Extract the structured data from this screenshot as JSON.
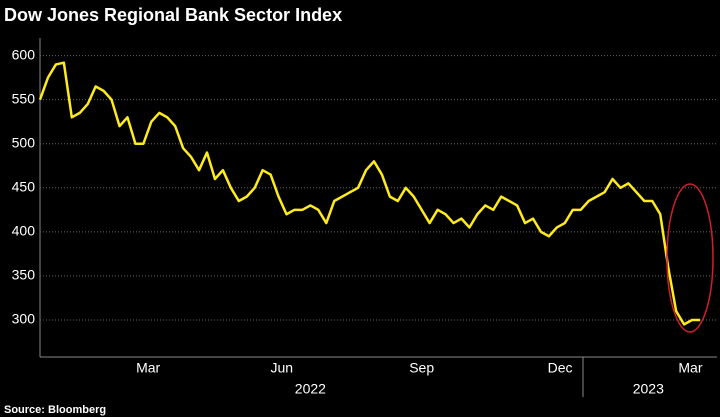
{
  "chart_data": {
    "type": "line",
    "title": "Dow Jones Regional Bank Sector Index",
    "source": "Source: Bloomberg",
    "series": [
      {
        "name": "Dow Jones Regional Bank Sector Index",
        "color": "#ffeb1a",
        "values": [
          550,
          575,
          590,
          592,
          530,
          535,
          545,
          565,
          560,
          550,
          520,
          530,
          500,
          500,
          525,
          535,
          530,
          520,
          495,
          485,
          470,
          490,
          460,
          470,
          450,
          435,
          440,
          450,
          470,
          465,
          440,
          420,
          425,
          425,
          430,
          425,
          410,
          435,
          440,
          445,
          450,
          470,
          480,
          465,
          440,
          435,
          450,
          440,
          425,
          410,
          425,
          420,
          410,
          415,
          405,
          420,
          430,
          425,
          440,
          435,
          430,
          410,
          415,
          400,
          395,
          405,
          410,
          425,
          425,
          435,
          440,
          445,
          460,
          450,
          455,
          445,
          435,
          435,
          420,
          360,
          310,
          295,
          300,
          300
        ]
      }
    ],
    "xlim": [
      0,
      83
    ],
    "xticks": [
      {
        "value": 13.6,
        "label": "Mar"
      },
      {
        "value": 30.4,
        "label": "Jun"
      },
      {
        "value": 48,
        "label": "Sep"
      },
      {
        "value": 65.4,
        "label": "Dec"
      },
      {
        "value": 81.8,
        "label": "Mar"
      }
    ],
    "years": [
      {
        "value": 34,
        "label": "2022"
      },
      {
        "value": 76.5,
        "label": "2023"
      }
    ],
    "ylim": [
      258,
      620
    ],
    "yticks": [
      300,
      350,
      400,
      450,
      500,
      550,
      600
    ],
    "grid": true
  }
}
